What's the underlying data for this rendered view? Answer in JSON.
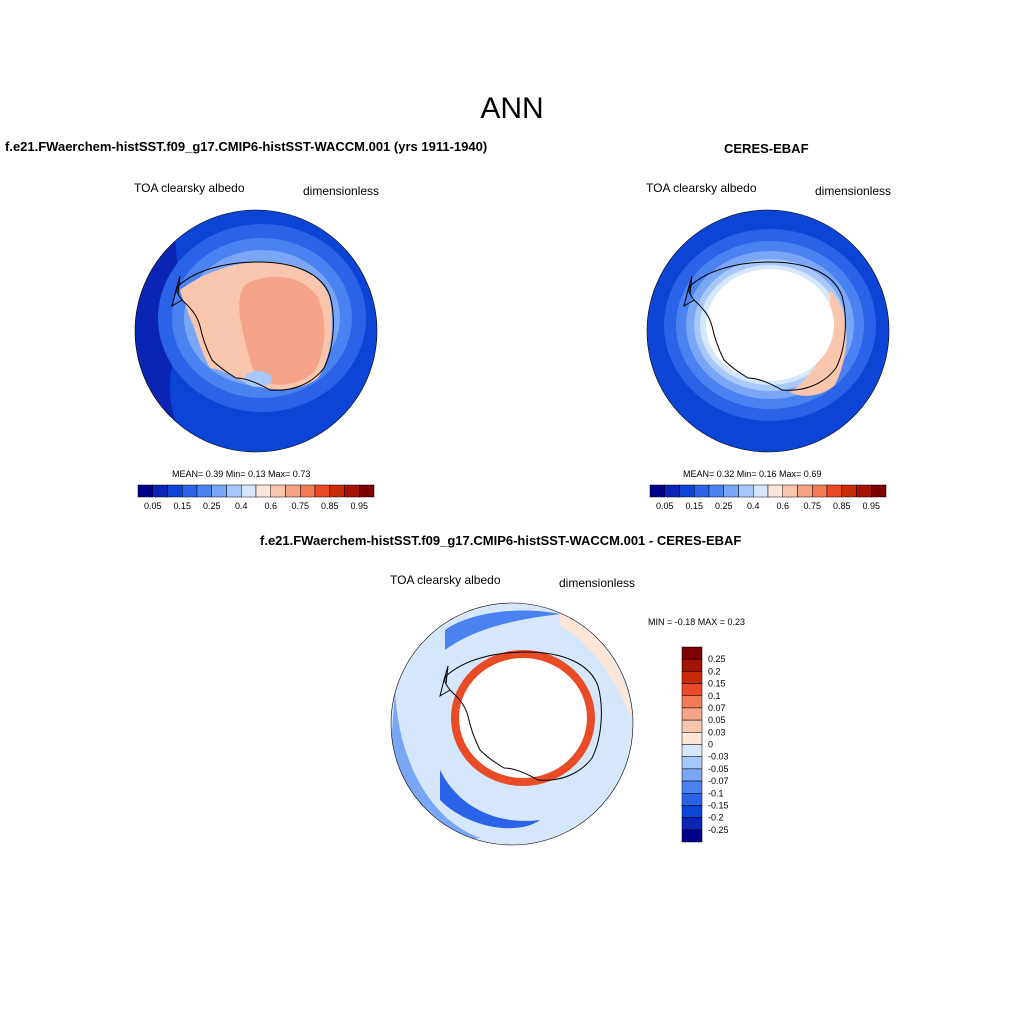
{
  "main_title": "ANN",
  "palette_seq": [
    "#00008b",
    "#0a24b4",
    "#0c44d6",
    "#2a62e8",
    "#4a82f2",
    "#7aa6f6",
    "#a6c8fb",
    "#d6e6fb",
    "#fde6d8",
    "#f9c5ad",
    "#f6a488",
    "#f27c58",
    "#e84b26",
    "#c82a0a",
    "#a21304",
    "#7c0000"
  ],
  "palette_div": [
    "#00008b",
    "#0a24b4",
    "#0c44d6",
    "#2a62e8",
    "#4a82f2",
    "#7aa6f6",
    "#a6c8fb",
    "#d6e6fb",
    "#fde6d8",
    "#f9c5ad",
    "#f6a488",
    "#f27c58",
    "#e84b26",
    "#c82a0a",
    "#a21304",
    "#7c0000"
  ],
  "panel_a": {
    "title": "f.e21.FWaerchem-histSST.f09_g17.CMIP6-histSST-WACCM.001 (yrs 1911-1940)",
    "left_label": "TOA clearsky albedo",
    "right_label": "dimensionless",
    "stats": "MEAN=   0.39  Min=    0.13  Max=    0.73"
  },
  "panel_b": {
    "title": "CERES-EBAF",
    "left_label": "TOA clearsky albedo",
    "right_label": "dimensionless",
    "stats": "MEAN=   0.32  Min=    0.16  Max=    0.69"
  },
  "panel_c": {
    "title": "f.e21.FWaerchem-histSST.f09_g17.CMIP6-histSST-WACCM.001 - CERES-EBAF",
    "left_label": "TOA clearsky albedo",
    "right_label": "dimensionless",
    "stats": "MIN =   -0.18  MAX =    0.23"
  },
  "chart_data": [
    {
      "type": "heatmap",
      "title": "f.e21.FWaerchem-histSST.f09_g17.CMIP6-histSST-WACCM.001 (yrs 1911-1940)",
      "variable": "TOA clearsky albedo",
      "units": "dimensionless",
      "projection": "south polar stereographic",
      "mean": 0.39,
      "min": 0.13,
      "max": 0.73,
      "colorbar_tick_labels": [
        "0.05",
        "0.15",
        "0.25",
        "0.4",
        "0.6",
        "0.75",
        "0.85",
        "0.95"
      ],
      "colorbar_orientation": "horizontal"
    },
    {
      "type": "heatmap",
      "title": "CERES-EBAF",
      "variable": "TOA clearsky albedo",
      "units": "dimensionless",
      "projection": "south polar stereographic",
      "mean": 0.32,
      "min": 0.16,
      "max": 0.69,
      "colorbar_tick_labels": [
        "0.05",
        "0.15",
        "0.25",
        "0.4",
        "0.6",
        "0.75",
        "0.85",
        "0.95"
      ],
      "colorbar_orientation": "horizontal"
    },
    {
      "type": "heatmap",
      "title": "f.e21.FWaerchem-histSST.f09_g17.CMIP6-histSST-WACCM.001 - CERES-EBAF",
      "variable": "TOA clearsky albedo",
      "units": "dimensionless",
      "projection": "south polar stereographic",
      "min": -0.18,
      "max": 0.23,
      "colorbar_tick_labels": [
        "0.25",
        "0.2",
        "0.15",
        "0.1",
        "0.07",
        "0.05",
        "0.03",
        "0",
        "-0.03",
        "-0.05",
        "-0.07",
        "-0.1",
        "-0.15",
        "-0.2",
        "-0.25"
      ],
      "colorbar_orientation": "vertical"
    }
  ]
}
